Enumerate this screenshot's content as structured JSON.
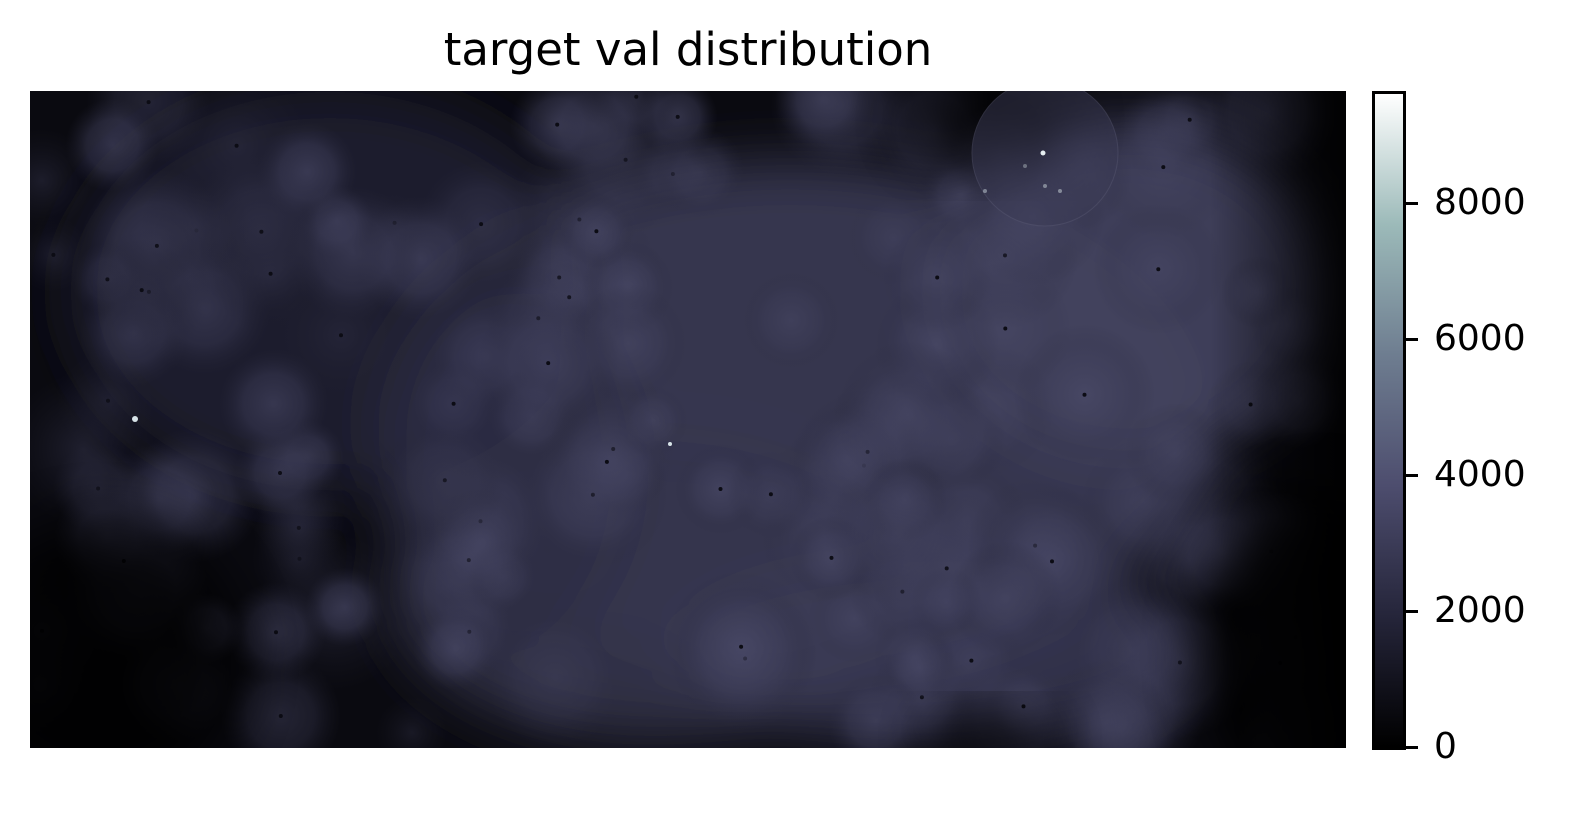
{
  "chart_data": {
    "type": "heatmap",
    "title": "target val distribution",
    "xlabel": "",
    "ylabel": "",
    "axes_visible": false,
    "colormap": "bone",
    "colorbar": {
      "vmin": 0,
      "vmax": 9600,
      "ticks": [
        0,
        2000,
        4000,
        6000,
        8000
      ],
      "tick_labels": [
        "0",
        "2000",
        "4000",
        "6000",
        "8000"
      ],
      "gradient": [
        "#000000",
        "#25253a",
        "#4d4d6e",
        "#6e7d90",
        "#9cbab9",
        "#ffffff"
      ]
    },
    "field": {
      "description_levels": "approx. value range 0–4500 with isolated peaks up to ~9000",
      "typical_value": 3000,
      "background_value": 0
    }
  }
}
